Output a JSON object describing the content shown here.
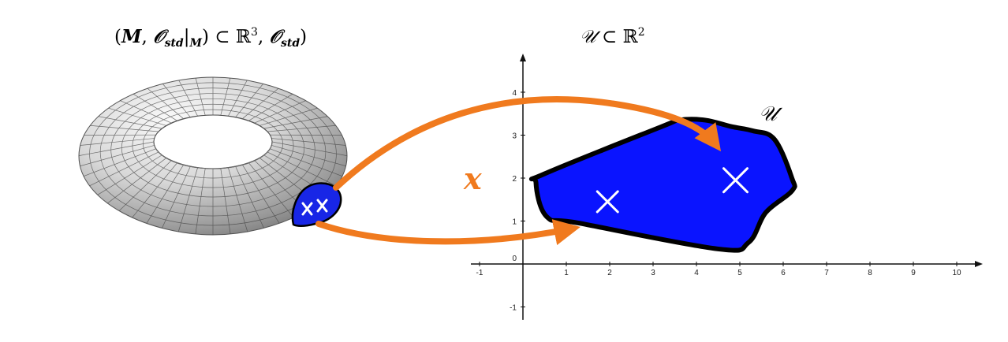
{
  "left_label": {
    "open_paren": "(",
    "M": "M",
    "comma": ", ",
    "O": "𝒪",
    "std_sub": "std",
    "restrict_bar": "|",
    "restrict_M": "M",
    "close_paren": ")",
    "subset": " ⊂ ",
    "R": "ℝ",
    "R_exp": "3",
    "comma2": ", ",
    "O2": "𝒪",
    "std_sub2": "std",
    "close_paren2": ")"
  },
  "right_label": {
    "U": "𝒰",
    "subset": " ⊂ ",
    "R": "ℝ",
    "R_exp": "2"
  },
  "region_label": "𝒰",
  "map_label": "x",
  "chart_data": {
    "type": "diagram",
    "x_ticks": [
      -1,
      0,
      1,
      2,
      3,
      4,
      5,
      6,
      7,
      8,
      9,
      10
    ],
    "x_tick_labels": [
      "-1",
      "0",
      "1",
      "2",
      "3",
      "4",
      "5",
      "6",
      "7",
      "8",
      "9",
      "10"
    ],
    "y_ticks": [
      -1,
      1,
      2,
      3,
      4
    ],
    "y_tick_labels": [
      "-1",
      "1",
      "2",
      "3",
      "4"
    ],
    "origin_label": "0",
    "xlim": [
      -1.2,
      10.6
    ],
    "ylim": [
      -1.3,
      4.9
    ],
    "region_vertices": [
      [
        0.3,
        1.9
      ],
      [
        0.5,
        2.1
      ],
      [
        3.2,
        3.2
      ],
      [
        3.6,
        3.35
      ],
      [
        4.2,
        3.35
      ],
      [
        4.8,
        3.2
      ],
      [
        5.3,
        3.1
      ],
      [
        5.8,
        2.9
      ],
      [
        6.2,
        2.0
      ],
      [
        6.2,
        1.7
      ],
      [
        5.6,
        1.2
      ],
      [
        5.2,
        0.5
      ],
      [
        4.5,
        0.35
      ],
      [
        1.3,
        0.95
      ],
      [
        0.55,
        1.1
      ]
    ],
    "marked_points": [
      [
        1.95,
        1.45
      ],
      [
        4.9,
        1.95
      ]
    ],
    "colors": {
      "region_fill": "#0a14ff",
      "region_outline": "#000000",
      "arrow": "#f07a1e",
      "mark": "#ffffff"
    }
  }
}
